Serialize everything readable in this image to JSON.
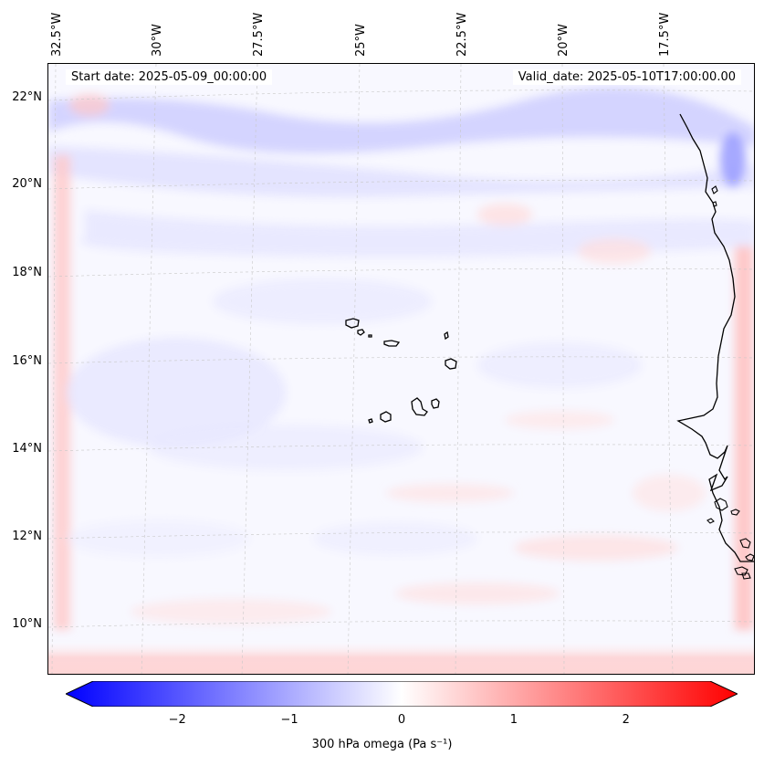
{
  "map": {
    "start_date_text": "Start date: 2025-05-09_00:00:00",
    "valid_date_text": "Valid_date: 2025-05-10T17:00:00.00",
    "lon_labels": [
      "32.5°W",
      "30°W",
      "27.5°W",
      "25°W",
      "22.5°W",
      "20°W",
      "17.5°W"
    ],
    "lat_labels": [
      "22°N",
      "20°N",
      "18°N",
      "16°N",
      "14°N",
      "12°N",
      "10°N"
    ],
    "field_variable": "300 hPa omega",
    "colors": {
      "negative_max": "#0000ff",
      "positive_max": "#ff0000",
      "neutral": "#ffffff",
      "coastline": "#000000",
      "gridline": "#c8c8c8"
    }
  },
  "colorbar": {
    "title": "300 hPa omega (Pa s⁻¹)",
    "ticks": [
      "−2",
      "−1",
      "0",
      "1",
      "2"
    ],
    "tick_values": [
      -2,
      -1,
      0,
      1,
      2
    ],
    "vmin": -2.75,
    "vmax": 2.75
  }
}
